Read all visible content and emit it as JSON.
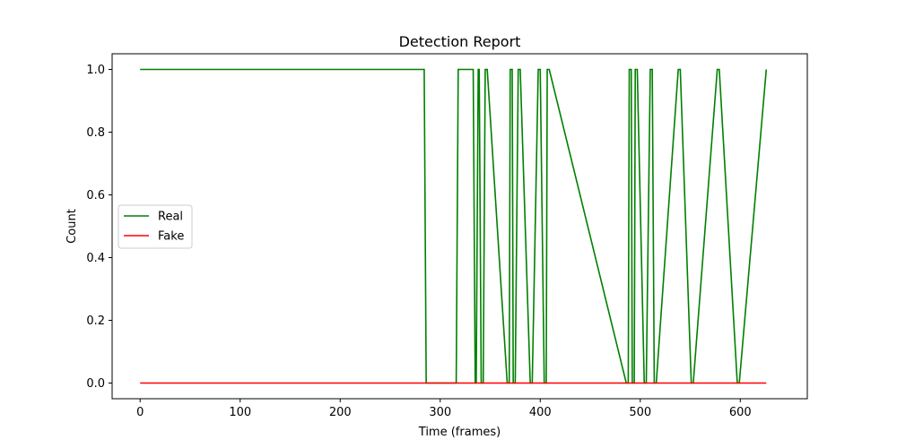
{
  "chart_data": {
    "type": "line",
    "title": "Detection Report",
    "xlabel": "Time (frames)",
    "ylabel": "Count",
    "xlim": [
      -28,
      667
    ],
    "ylim": [
      -0.05,
      1.05
    ],
    "xticks": [
      0,
      100,
      200,
      300,
      400,
      500,
      600
    ],
    "yticks": [
      0.0,
      0.2,
      0.4,
      0.6,
      0.8,
      1.0
    ],
    "xtick_labels": [
      "0",
      "100",
      "200",
      "300",
      "400",
      "500",
      "600"
    ],
    "ytick_labels": [
      "0.0",
      "0.2",
      "0.4",
      "0.6",
      "0.8",
      "1.0"
    ],
    "legend_position": "center-left",
    "series": [
      {
        "name": "Real",
        "color": "#008000",
        "x": [
          0,
          284,
          286,
          316,
          318,
          333,
          335,
          336,
          338,
          339,
          341,
          343,
          345,
          347,
          367,
          369,
          370,
          372,
          373,
          375,
          378,
          380,
          390,
          392,
          398,
          400,
          404,
          406,
          407,
          409,
          486,
          488,
          489,
          491,
          492,
          494,
          495,
          497,
          504,
          506,
          510,
          512,
          514,
          516,
          538,
          540,
          551,
          553,
          577,
          579,
          597,
          599,
          626
        ],
        "y": [
          1,
          1,
          0,
          0,
          1,
          1,
          0,
          0,
          1,
          1,
          0,
          0,
          1,
          1,
          0,
          0,
          1,
          1,
          0,
          0,
          1,
          1,
          0,
          0,
          1,
          1,
          0,
          0,
          1,
          1,
          0,
          0,
          1,
          1,
          0,
          0,
          1,
          1,
          0,
          0,
          1,
          1,
          0,
          0,
          1,
          1,
          0,
          0,
          1,
          1,
          0,
          0,
          1
        ]
      },
      {
        "name": "Fake",
        "color": "#ff0000",
        "x": [
          0,
          626
        ],
        "y": [
          0,
          0
        ]
      }
    ]
  }
}
